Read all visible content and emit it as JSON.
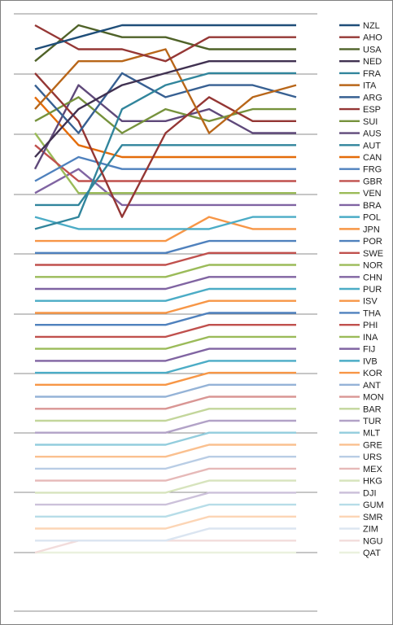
{
  "chart_data": {
    "type": "line",
    "title": "",
    "xlabel": "",
    "ylabel": "",
    "x": [
      1,
      2,
      3,
      4,
      5,
      6,
      7
    ],
    "ylim": [
      0,
      45
    ],
    "grid": true,
    "legend_position": "right",
    "series": [
      {
        "name": "NZL",
        "color": "#1f4e79",
        "values": [
          3,
          2,
          1,
          1,
          1,
          1,
          1
        ]
      },
      {
        "name": "AHO",
        "color": "#953735",
        "values": [
          1,
          3,
          3,
          4,
          2,
          2,
          2
        ]
      },
      {
        "name": "USA",
        "color": "#4f6228",
        "values": [
          4,
          1,
          2,
          2,
          3,
          3,
          3
        ]
      },
      {
        "name": "NED",
        "color": "#403151",
        "values": [
          12,
          8,
          6,
          5,
          4,
          4,
          4
        ]
      },
      {
        "name": "FRA",
        "color": "#31859c",
        "values": [
          18,
          17,
          8,
          6,
          5,
          5,
          5
        ]
      },
      {
        "name": "ITA",
        "color": "#b86619",
        "values": [
          8,
          4,
          4,
          3,
          10,
          7,
          6
        ]
      },
      {
        "name": "ARG",
        "color": "#376092",
        "values": [
          6,
          10,
          5,
          7,
          6,
          6,
          7
        ]
      },
      {
        "name": "ESP",
        "color": "#943634",
        "values": [
          5,
          9,
          17,
          10,
          7,
          9,
          9
        ]
      },
      {
        "name": "SUI",
        "color": "#76923c",
        "values": [
          9,
          7,
          10,
          8,
          9,
          8,
          8
        ]
      },
      {
        "name": "AUS",
        "color": "#5f497a",
        "values": [
          13,
          6,
          9,
          9,
          8,
          10,
          10
        ]
      },
      {
        "name": "AUT",
        "color": "#31859c",
        "values": [
          16,
          16,
          11,
          11,
          11,
          11,
          11
        ]
      },
      {
        "name": "CAN",
        "color": "#e46c0a",
        "values": [
          7,
          11,
          12,
          12,
          12,
          12,
          12
        ]
      },
      {
        "name": "FRG",
        "color": "#4f81bd",
        "values": [
          14,
          12,
          13,
          13,
          13,
          13,
          13
        ]
      },
      {
        "name": "GBR",
        "color": "#c0504d",
        "values": [
          11,
          14,
          14,
          14,
          14,
          14,
          14
        ]
      },
      {
        "name": "VEN",
        "color": "#9bbb59",
        "values": [
          10,
          15,
          15,
          15,
          15,
          15,
          15
        ]
      },
      {
        "name": "BRA",
        "color": "#8064a2",
        "values": [
          15,
          13,
          16,
          16,
          16,
          16,
          16
        ]
      },
      {
        "name": "POL",
        "color": "#4bacc6",
        "values": [
          17,
          18,
          18,
          18,
          18,
          17,
          17
        ]
      },
      {
        "name": "JPN",
        "color": "#f79646",
        "values": [
          19,
          19,
          19,
          19,
          17,
          18,
          18
        ]
      },
      {
        "name": "POR",
        "color": "#4f81bd",
        "values": [
          20,
          20,
          20,
          20,
          19,
          19,
          19
        ]
      },
      {
        "name": "SWE",
        "color": "#c0504d",
        "values": [
          21,
          21,
          21,
          21,
          20,
          20,
          20
        ]
      },
      {
        "name": "NOR",
        "color": "#9bbb59",
        "values": [
          22,
          22,
          22,
          22,
          21,
          21,
          21
        ]
      },
      {
        "name": "CHN",
        "color": "#8064a2",
        "values": [
          23,
          23,
          23,
          23,
          22,
          22,
          22
        ]
      },
      {
        "name": "PUR",
        "color": "#4bacc6",
        "values": [
          24,
          24,
          24,
          24,
          23,
          23,
          23
        ]
      },
      {
        "name": "ISV",
        "color": "#f79646",
        "values": [
          25,
          25,
          25,
          25,
          24,
          24,
          24
        ]
      },
      {
        "name": "THA",
        "color": "#4f81bd",
        "values": [
          26,
          26,
          26,
          26,
          25,
          25,
          25
        ]
      },
      {
        "name": "PHI",
        "color": "#c0504d",
        "values": [
          27,
          27,
          27,
          27,
          26,
          26,
          26
        ]
      },
      {
        "name": "INA",
        "color": "#9bbb59",
        "values": [
          28,
          28,
          28,
          28,
          27,
          27,
          27
        ]
      },
      {
        "name": "FIJ",
        "color": "#8064a2",
        "values": [
          29,
          29,
          29,
          29,
          28,
          28,
          28
        ]
      },
      {
        "name": "IVB",
        "color": "#4bacc6",
        "values": [
          30,
          30,
          30,
          30,
          29,
          29,
          29
        ]
      },
      {
        "name": "KOR",
        "color": "#f79646",
        "values": [
          31,
          31,
          31,
          31,
          30,
          30,
          30
        ]
      },
      {
        "name": "ANT",
        "color": "#95b3d7",
        "values": [
          32,
          32,
          32,
          32,
          31,
          31,
          31
        ]
      },
      {
        "name": "MON",
        "color": "#d99694",
        "values": [
          33,
          33,
          33,
          33,
          32,
          32,
          32
        ]
      },
      {
        "name": "BAR",
        "color": "#c3d69b",
        "values": [
          34,
          34,
          34,
          34,
          33,
          33,
          33
        ]
      },
      {
        "name": "TUR",
        "color": "#b2a2c7",
        "values": [
          35,
          35,
          35,
          35,
          34,
          34,
          34
        ]
      },
      {
        "name": "MLT",
        "color": "#93cddd",
        "values": [
          36,
          36,
          36,
          36,
          35,
          35,
          35
        ]
      },
      {
        "name": "GRE",
        "color": "#fac08f",
        "values": [
          37,
          37,
          37,
          37,
          36,
          36,
          36
        ]
      },
      {
        "name": "URS",
        "color": "#b9cde5",
        "values": [
          38,
          38,
          38,
          38,
          37,
          37,
          37
        ]
      },
      {
        "name": "MEX",
        "color": "#e6b9b8",
        "values": [
          39,
          39,
          39,
          39,
          38,
          38,
          38
        ]
      },
      {
        "name": "HKG",
        "color": "#d7e4bd",
        "values": [
          40,
          40,
          40,
          40,
          39,
          39,
          39
        ]
      },
      {
        "name": "DJI",
        "color": "#ccc1da",
        "values": [
          41,
          41,
          41,
          41,
          40,
          40,
          40
        ]
      },
      {
        "name": "GUM",
        "color": "#b7dde8",
        "values": [
          42,
          42,
          42,
          42,
          41,
          41,
          41
        ]
      },
      {
        "name": "SMR",
        "color": "#fcd5b5",
        "values": [
          43,
          43,
          43,
          43,
          42,
          42,
          42
        ]
      },
      {
        "name": "ZIM",
        "color": "#dbe5f1",
        "values": [
          44,
          44,
          44,
          44,
          43,
          43,
          43
        ]
      },
      {
        "name": "NGU",
        "color": "#f2dcdb",
        "values": [
          45,
          44,
          44,
          44,
          44,
          44,
          44
        ]
      },
      {
        "name": "QAT",
        "color": "#ebf1de",
        "values": [
          45,
          45,
          45,
          45,
          45,
          45,
          45
        ]
      }
    ]
  }
}
